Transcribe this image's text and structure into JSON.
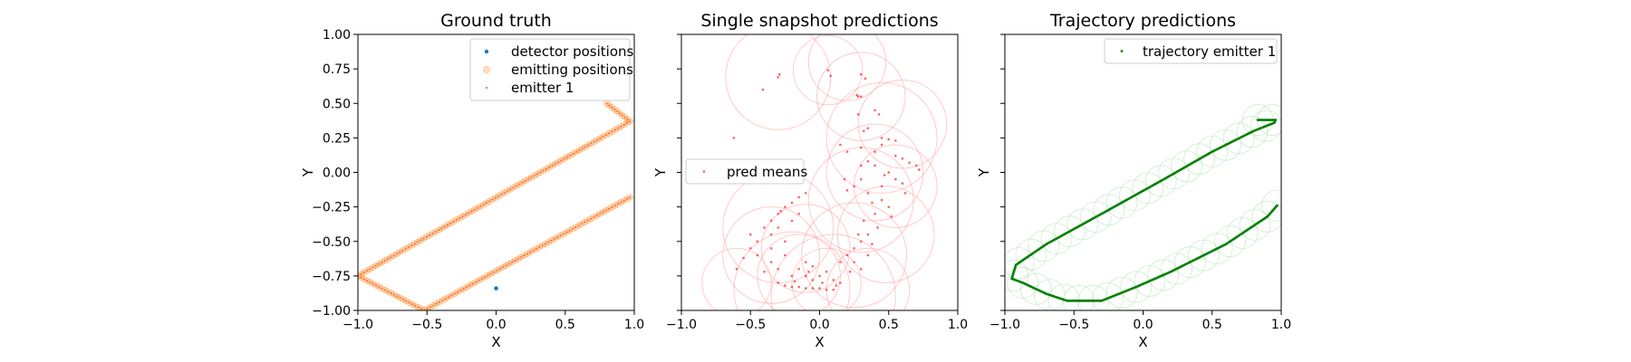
{
  "chart_data": [
    {
      "type": "scatter",
      "title": "Ground truth",
      "xlabel": "X",
      "ylabel": "Y",
      "xlim": [
        -1.0,
        1.0
      ],
      "ylim": [
        -1.0,
        1.0
      ],
      "xticks": [
        "−1.0",
        "−0.5",
        "0.0",
        "0.5",
        "1.0"
      ],
      "yticks": [
        "1.00",
        "0.75",
        "0.50",
        "0.25",
        "0.00",
        "−0.25",
        "−0.50",
        "−0.75",
        "−1.00"
      ],
      "legend_position": "top-right",
      "legend": [
        "detector positions",
        "emitting positions",
        "emitter 1"
      ],
      "detector_positions": [
        [
          0.0,
          -0.84
        ]
      ],
      "emitter_path_vertices": [
        [
          0.97,
          -0.18
        ],
        [
          -0.52,
          -1.0
        ],
        [
          -1.0,
          -0.75
        ],
        [
          0.97,
          0.37
        ],
        [
          0.8,
          0.5
        ]
      ],
      "colors": {
        "detector": "#1f77b4",
        "emitting": "#ff7f0e",
        "emitter1": "#d62728"
      }
    },
    {
      "type": "scatter",
      "title": "Single snapshot predictions",
      "xlabel": "X",
      "ylabel": "Y",
      "xlim": [
        -1.0,
        1.0
      ],
      "ylim": [
        -1.0,
        1.0
      ],
      "xticks": [
        "−1.0",
        "−0.5",
        "0.0",
        "0.5",
        "1.0"
      ],
      "legend_position": "center-left",
      "legend": [
        "pred means"
      ],
      "pred_means": [
        [
          -0.3,
          0.69
        ],
        [
          -0.29,
          0.71
        ],
        [
          -0.41,
          0.6
        ],
        [
          -0.62,
          0.25
        ],
        [
          0.08,
          0.7
        ],
        [
          0.06,
          0.74
        ],
        [
          0.3,
          0.71
        ],
        [
          0.33,
          0.68
        ],
        [
          0.27,
          0.56
        ],
        [
          0.28,
          0.55
        ],
        [
          0.3,
          0.55
        ],
        [
          0.4,
          0.45
        ],
        [
          0.28,
          0.42
        ],
        [
          0.43,
          0.42
        ],
        [
          0.32,
          0.3
        ],
        [
          0.35,
          0.32
        ],
        [
          0.45,
          0.25
        ],
        [
          0.5,
          0.24
        ],
        [
          0.55,
          0.23
        ],
        [
          0.2,
          0.15
        ],
        [
          0.3,
          0.18
        ],
        [
          0.4,
          0.15
        ],
        [
          0.45,
          0.2
        ],
        [
          0.55,
          0.12
        ],
        [
          0.6,
          0.1
        ],
        [
          0.65,
          0.07
        ],
        [
          0.7,
          0.05
        ],
        [
          0.72,
          0.02
        ],
        [
          0.4,
          0.05
        ],
        [
          0.5,
          0.0
        ],
        [
          0.55,
          -0.05
        ],
        [
          0.6,
          -0.08
        ],
        [
          0.3,
          -0.05
        ],
        [
          0.25,
          -0.1
        ],
        [
          0.2,
          -0.13
        ],
        [
          0.35,
          -0.15
        ],
        [
          0.45,
          -0.2
        ],
        [
          0.5,
          -0.25
        ],
        [
          0.4,
          -0.3
        ],
        [
          0.32,
          -0.35
        ],
        [
          0.42,
          -0.4
        ],
        [
          0.18,
          -0.05
        ],
        [
          0.45,
          -0.1
        ],
        [
          0.62,
          -0.15
        ],
        [
          0.52,
          -0.32
        ],
        [
          0.3,
          0.05
        ],
        [
          0.15,
          0.2
        ],
        [
          0.35,
          0.08
        ],
        [
          0.47,
          -0.02
        ],
        [
          0.38,
          -0.22
        ],
        [
          -0.5,
          -0.45
        ],
        [
          -0.45,
          -0.5
        ],
        [
          -0.4,
          -0.4
        ],
        [
          -0.35,
          -0.35
        ],
        [
          -0.3,
          -0.3
        ],
        [
          -0.25,
          -0.25
        ],
        [
          -0.2,
          -0.22
        ],
        [
          -0.15,
          -0.18
        ],
        [
          -0.1,
          -0.15
        ],
        [
          -0.35,
          -0.45
        ],
        [
          -0.3,
          -0.4
        ],
        [
          -0.2,
          -0.35
        ],
        [
          -0.5,
          -0.55
        ],
        [
          -0.45,
          -0.6
        ],
        [
          -0.55,
          -0.62
        ],
        [
          -0.6,
          -0.7
        ],
        [
          -0.35,
          -0.55
        ],
        [
          -0.25,
          -0.5
        ],
        [
          -0.28,
          -0.28
        ],
        [
          -0.15,
          -0.3
        ],
        [
          -0.3,
          -0.8
        ],
        [
          -0.25,
          -0.82
        ],
        [
          -0.2,
          -0.83
        ],
        [
          -0.15,
          -0.83
        ],
        [
          -0.1,
          -0.84
        ],
        [
          -0.05,
          -0.84
        ],
        [
          0.0,
          -0.84
        ],
        [
          0.05,
          -0.85
        ],
        [
          0.1,
          -0.85
        ],
        [
          -0.2,
          -0.75
        ],
        [
          -0.1,
          -0.75
        ],
        [
          0.0,
          -0.75
        ],
        [
          0.1,
          -0.78
        ],
        [
          0.15,
          -0.8
        ],
        [
          -0.35,
          -0.65
        ],
        [
          -0.3,
          -0.7
        ],
        [
          -0.15,
          -0.7
        ],
        [
          -0.05,
          -0.68
        ],
        [
          0.05,
          -0.72
        ],
        [
          0.2,
          -0.6
        ],
        [
          0.25,
          -0.55
        ],
        [
          0.3,
          -0.5
        ],
        [
          0.35,
          -0.45
        ],
        [
          0.25,
          -0.65
        ],
        [
          0.3,
          -0.7
        ],
        [
          0.35,
          -0.6
        ],
        [
          0.15,
          -0.65
        ],
        [
          -0.1,
          -0.65
        ],
        [
          -0.25,
          -0.6
        ],
        [
          -0.05,
          -0.78
        ],
        [
          -0.18,
          -0.79
        ],
        [
          0.02,
          -0.8
        ],
        [
          0.12,
          -0.82
        ],
        [
          -0.08,
          -0.72
        ],
        [
          0.22,
          -0.72
        ],
        [
          -0.4,
          -0.72
        ],
        [
          0.28,
          -0.45
        ],
        [
          0.38,
          -0.52
        ]
      ],
      "uncertainty_circles": [
        [
          -0.3,
          0.69,
          0.38
        ],
        [
          0.06,
          0.74,
          0.25
        ],
        [
          0.3,
          0.55,
          0.32
        ],
        [
          0.45,
          0.25,
          0.4
        ],
        [
          0.4,
          0.0,
          0.35
        ],
        [
          0.55,
          -0.1,
          0.3
        ],
        [
          0.3,
          -0.2,
          0.38
        ],
        [
          -0.3,
          -0.4,
          0.4
        ],
        [
          -0.35,
          -0.6,
          0.35
        ],
        [
          -0.15,
          -0.75,
          0.3
        ],
        [
          0.05,
          -0.8,
          0.25
        ],
        [
          0.25,
          -0.6,
          0.38
        ],
        [
          -0.2,
          -0.85,
          0.42
        ],
        [
          0.1,
          -0.9,
          0.45
        ],
        [
          0.35,
          -0.85,
          0.3
        ],
        [
          -0.6,
          -0.8,
          0.25
        ],
        [
          0.6,
          0.35,
          0.32
        ],
        [
          0.2,
          0.8,
          0.28
        ],
        [
          0.48,
          -0.45,
          0.35
        ],
        [
          -0.1,
          -0.55,
          0.32
        ]
      ],
      "colors": {
        "pred": "#ff2a2a",
        "circle": "#ff9f9f"
      }
    },
    {
      "type": "scatter",
      "title": "Trajectory predictions",
      "xlabel": "X",
      "ylabel": "Y",
      "xlim": [
        -1.0,
        1.0
      ],
      "ylim": [
        -1.0,
        1.0
      ],
      "xticks": [
        "−1.0",
        "−0.5",
        "0.0",
        "0.5",
        "1.0"
      ],
      "legend_position": "top-right",
      "legend": [
        "trajectory emitter 1"
      ],
      "trajectory_vertices": [
        [
          0.97,
          -0.24
        ],
        [
          0.9,
          -0.32
        ],
        [
          0.6,
          -0.52
        ],
        [
          0.2,
          -0.72
        ],
        [
          -0.05,
          -0.83
        ],
        [
          -0.3,
          -0.93
        ],
        [
          -0.55,
          -0.93
        ],
        [
          -0.7,
          -0.88
        ],
        [
          -0.87,
          -0.8
        ],
        [
          -0.95,
          -0.77
        ],
        [
          -0.92,
          -0.67
        ],
        [
          -0.7,
          -0.52
        ],
        [
          -0.3,
          -0.3
        ],
        [
          0.15,
          -0.05
        ],
        [
          0.5,
          0.15
        ],
        [
          0.8,
          0.3
        ],
        [
          0.95,
          0.36
        ],
        [
          0.96,
          0.38
        ],
        [
          0.83,
          0.38
        ]
      ],
      "colors": {
        "trajectory": "#008000",
        "circle": "#9fd99f"
      }
    }
  ]
}
